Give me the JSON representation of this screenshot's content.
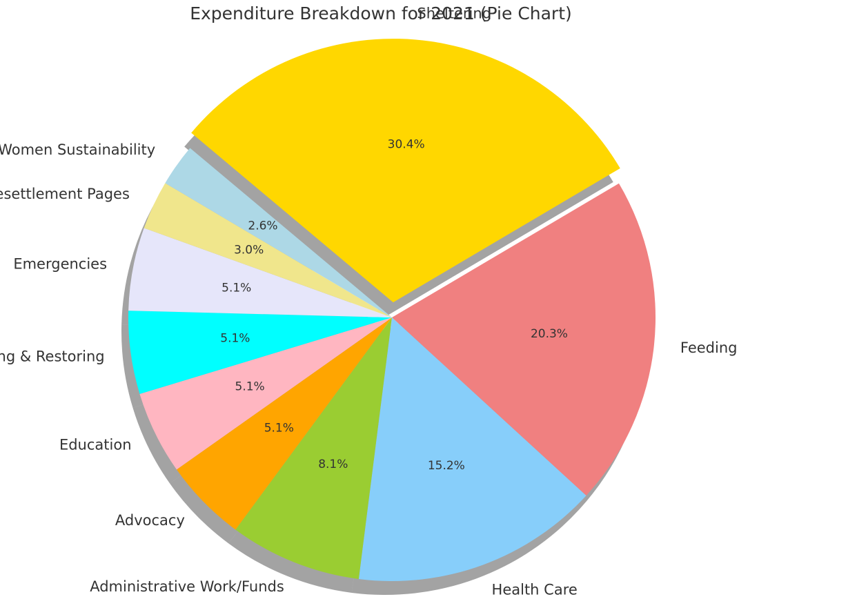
{
  "chart_data": {
    "type": "pie",
    "title": "Expenditure Breakdown for 2021 (Pie Chart)",
    "start_angle_deg": 140,
    "direction": "clockwise",
    "exploded": "Sheltering",
    "shadow": true,
    "slices": [
      {
        "label": "Sheltering",
        "value": 30.4,
        "pct_label": "30.4%",
        "color": "#FFD700"
      },
      {
        "label": "Feeding",
        "value": 20.3,
        "pct_label": "20.3%",
        "color": "#F08080"
      },
      {
        "label": "Health Care",
        "value": 15.2,
        "pct_label": "15.2%",
        "color": "#87CEFA"
      },
      {
        "label": "Administrative Work/Funds",
        "value": 8.1,
        "pct_label": "8.1%",
        "color": "#9ACD32"
      },
      {
        "label": "Advocacy",
        "value": 5.1,
        "pct_label": "5.1%",
        "color": "#FFA500"
      },
      {
        "label": "Education",
        "value": 5.1,
        "pct_label": "5.1%",
        "color": "#FFB6C1"
      },
      {
        "label": "Building & Restoring",
        "value": 5.1,
        "pct_label": "5.1%",
        "color": "#00FFFF"
      },
      {
        "label": "Emergencies",
        "value": 5.1,
        "pct_label": "5.1%",
        "color": "#E6E6FA"
      },
      {
        "label": "Resettlement Pages",
        "value": 3.0,
        "pct_label": "3.0%",
        "color": "#F0E68C"
      },
      {
        "label": "Women Sustainability",
        "value": 2.6,
        "pct_label": "2.6%",
        "color": "#ADD8E6"
      }
    ]
  }
}
